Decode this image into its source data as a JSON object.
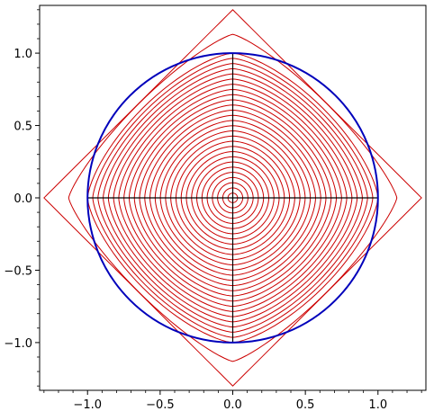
{
  "chart_data": {
    "type": "line",
    "title": "",
    "xlabel": "",
    "ylabel": "",
    "xlim": [
      -1.33,
      1.33
    ],
    "ylim": [
      -1.33,
      1.33
    ],
    "aspect": "equal",
    "grid": false,
    "legend": "none",
    "x_ticks": [
      -1.0,
      -0.5,
      0.0,
      0.5,
      1.0
    ],
    "y_ticks": [
      1.0,
      0.5,
      0.0,
      -0.5,
      -1.0
    ],
    "x_tick_labels": [
      "−1.0",
      "−0.5",
      "0.0",
      "0.5",
      "1.0"
    ],
    "y_tick_labels": [
      "1.0",
      "0.5",
      "0.0",
      "−0.5",
      "−1.0"
    ],
    "minor_ticks": true,
    "series": [
      {
        "kind": "polygon-family",
        "color": "#cc0000",
        "description_values": {
          "curve_count": 30,
          "outer_diamond_vertex_radius": 1.3,
          "second_curve_vertex_radius": 1.13,
          "inner_curves_radius_min": 0.033,
          "inner_curves_radius_max": 1.0
        }
      },
      {
        "kind": "circle",
        "color": "#0000bb",
        "center": [
          0,
          0
        ],
        "radius": 1.0
      },
      {
        "kind": "axis-cross",
        "color": "#000000",
        "horizontal": [
          [
            -1.0,
            0
          ],
          [
            1.0,
            0
          ]
        ],
        "vertical": [
          [
            0,
            -1.0
          ],
          [
            0,
            1.0
          ]
        ]
      }
    ]
  },
  "colors": {
    "red_curves": "#cc0000",
    "blue_circle": "#0000bb",
    "axes": "#000000",
    "background": "#ffffff"
  }
}
